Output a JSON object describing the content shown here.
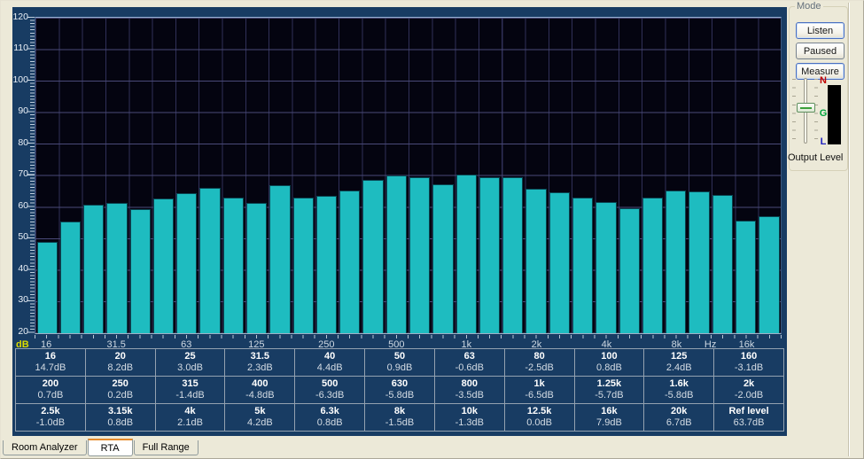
{
  "colors": {
    "window_bg": "#ECE9D8",
    "panel_navy": "#183C63",
    "plot_bg": "#040410",
    "bar_teal": "#1EBCC0",
    "grid_vertical": "#303058",
    "grid_horizontal": "#4A4A78",
    "db_label_yellow": "#DCDC00",
    "tab_active_accent": "#E68B2C",
    "meter_n_red": "#C00000",
    "meter_g_green": "#00A33E",
    "meter_l_blue": "#1F1FBF"
  },
  "chart_data": {
    "type": "bar",
    "ylim": [
      20,
      120
    ],
    "y_ticks": [
      120,
      110,
      100,
      90,
      80,
      70,
      60,
      50,
      40,
      30,
      20
    ],
    "y_axis_corner_label": "dB",
    "x_unit_label": "Hz",
    "hz_label_band": 28.45,
    "grid": true,
    "categories": [
      "16",
      "20",
      "25",
      "31.5",
      "40",
      "50",
      "63",
      "80",
      "100",
      "125",
      "160",
      "200",
      "250",
      "315",
      "400",
      "500",
      "630",
      "800",
      "1k",
      "1.25k",
      "1.6k",
      "2k",
      "2.5k",
      "3.15k",
      "4k",
      "5k",
      "6.3k",
      "8k",
      "10k",
      "12.5k",
      "16k",
      "20k"
    ],
    "values_db": [
      49.0,
      55.5,
      60.7,
      61.4,
      59.3,
      62.8,
      64.3,
      66.2,
      62.9,
      61.3,
      66.8,
      63.0,
      63.5,
      65.1,
      68.5,
      70.0,
      69.5,
      67.2,
      70.2,
      69.4,
      69.5,
      65.7,
      64.7,
      62.9,
      61.6,
      59.5,
      62.9,
      65.2,
      65.0,
      63.7,
      55.8,
      57.0
    ],
    "deviations_db": [
      14.7,
      8.2,
      3.0,
      2.3,
      4.4,
      0.9,
      -0.6,
      -2.5,
      0.8,
      2.4,
      -3.1,
      0.7,
      0.2,
      -1.4,
      -4.8,
      -6.3,
      -5.8,
      -3.5,
      -6.5,
      -5.7,
      -5.8,
      -2.0,
      -1.0,
      0.8,
      2.1,
      4.2,
      0.8,
      -1.5,
      -1.3,
      0.0,
      7.9,
      6.7
    ],
    "ref_level_db": 63.7,
    "x_tick_labels": [
      {
        "text": "16",
        "band": 0
      },
      {
        "text": "31.5",
        "band": 3
      },
      {
        "text": "63",
        "band": 6
      },
      {
        "text": "125",
        "band": 9
      },
      {
        "text": "250",
        "band": 12
      },
      {
        "text": "500",
        "band": 15
      },
      {
        "text": "1k",
        "band": 18
      },
      {
        "text": "2k",
        "band": 21
      },
      {
        "text": "4k",
        "band": 24
      },
      {
        "text": "8k",
        "band": 27
      },
      {
        "text": "16k",
        "band": 30
      }
    ]
  },
  "table": {
    "rows": [
      [
        {
          "f": "16",
          "v": "14.7dB"
        },
        {
          "f": "20",
          "v": "8.2dB"
        },
        {
          "f": "25",
          "v": "3.0dB"
        },
        {
          "f": "31.5",
          "v": "2.3dB"
        },
        {
          "f": "40",
          "v": "4.4dB"
        },
        {
          "f": "50",
          "v": "0.9dB"
        },
        {
          "f": "63",
          "v": "-0.6dB"
        },
        {
          "f": "80",
          "v": "-2.5dB"
        },
        {
          "f": "100",
          "v": "0.8dB"
        },
        {
          "f": "125",
          "v": "2.4dB"
        },
        {
          "f": "160",
          "v": "-3.1dB"
        }
      ],
      [
        {
          "f": "200",
          "v": "0.7dB"
        },
        {
          "f": "250",
          "v": "0.2dB"
        },
        {
          "f": "315",
          "v": "-1.4dB"
        },
        {
          "f": "400",
          "v": "-4.8dB"
        },
        {
          "f": "500",
          "v": "-6.3dB"
        },
        {
          "f": "630",
          "v": "-5.8dB"
        },
        {
          "f": "800",
          "v": "-3.5dB"
        },
        {
          "f": "1k",
          "v": "-6.5dB"
        },
        {
          "f": "1.25k",
          "v": "-5.7dB"
        },
        {
          "f": "1.6k",
          "v": "-5.8dB"
        },
        {
          "f": "2k",
          "v": "-2.0dB"
        }
      ],
      [
        {
          "f": "2.5k",
          "v": "-1.0dB"
        },
        {
          "f": "3.15k",
          "v": "0.8dB"
        },
        {
          "f": "4k",
          "v": "2.1dB"
        },
        {
          "f": "5k",
          "v": "4.2dB"
        },
        {
          "f": "6.3k",
          "v": "0.8dB"
        },
        {
          "f": "8k",
          "v": "-1.5dB"
        },
        {
          "f": "10k",
          "v": "-1.3dB"
        },
        {
          "f": "12.5k",
          "v": "0.0dB"
        },
        {
          "f": "16k",
          "v": "7.9dB"
        },
        {
          "f": "20k",
          "v": "6.7dB"
        },
        {
          "f": "Ref level",
          "v": "63.7dB"
        }
      ]
    ]
  },
  "mode_panel": {
    "title": "Mode",
    "listen_label": "Listen",
    "paused_label": "Paused",
    "measure_label": "Measure",
    "output_level_label": "Output Level",
    "meter_letters": {
      "top": "N",
      "mid": "G",
      "bottom": "L"
    }
  },
  "tabs": [
    {
      "label": "Room Analyzer",
      "active": false
    },
    {
      "label": "RTA",
      "active": true
    },
    {
      "label": "Full Range",
      "active": false
    }
  ]
}
